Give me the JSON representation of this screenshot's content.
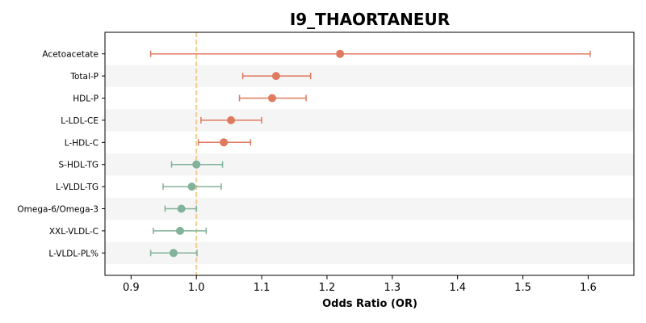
{
  "chart_data": {
    "type": "forest",
    "title": "I9_THAORTANEUR",
    "xlabel": "Odds Ratio (OR)",
    "ylabel": "",
    "xlim": [
      0.86,
      1.67
    ],
    "xticks": [
      0.9,
      1.0,
      1.1,
      1.2,
      1.3,
      1.4,
      1.5,
      1.6
    ],
    "xtick_labels": [
      "0.9",
      "1.0",
      "1.1",
      "1.2",
      "1.3",
      "1.4",
      "1.5",
      "1.6"
    ],
    "reference_line": 1.0,
    "grid": false,
    "alternating_row_shading": true,
    "colors": {
      "positive": "#e07a5f",
      "negative": "#81b29a",
      "reference": "#f2cc8f",
      "row_shade": "#f5f5f5"
    },
    "rows": [
      {
        "label": "Acetoacetate",
        "or": 1.22,
        "lower": 0.93,
        "upper": 1.603,
        "direction": "positive"
      },
      {
        "label": "Total-P",
        "or": 1.122,
        "lower": 1.071,
        "upper": 1.175,
        "direction": "positive"
      },
      {
        "label": "HDL-P",
        "or": 1.116,
        "lower": 1.066,
        "upper": 1.168,
        "direction": "positive"
      },
      {
        "label": "L-LDL-CE",
        "or": 1.053,
        "lower": 1.007,
        "upper": 1.1,
        "direction": "positive"
      },
      {
        "label": "L-HDL-C",
        "or": 1.042,
        "lower": 1.003,
        "upper": 1.083,
        "direction": "positive"
      },
      {
        "label": "S-HDL-TG",
        "or": 1.0,
        "lower": 0.962,
        "upper": 1.04,
        "direction": "negative"
      },
      {
        "label": "L-VLDL-TG",
        "or": 0.993,
        "lower": 0.949,
        "upper": 1.038,
        "direction": "negative"
      },
      {
        "label": "Omega-6/Omega-3",
        "or": 0.977,
        "lower": 0.952,
        "upper": 1.0,
        "direction": "negative"
      },
      {
        "label": "XXL-VLDL-C",
        "or": 0.975,
        "lower": 0.934,
        "upper": 1.015,
        "direction": "negative"
      },
      {
        "label": "L-VLDL-PL%",
        "or": 0.965,
        "lower": 0.93,
        "upper": 1.001,
        "direction": "negative"
      }
    ]
  }
}
